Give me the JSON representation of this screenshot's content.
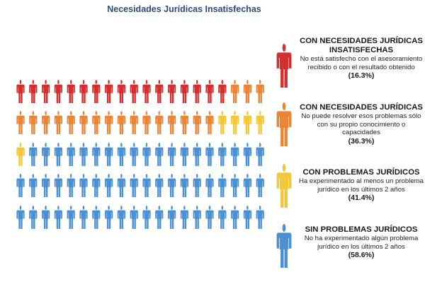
{
  "title": "Necesidades Jurídicas Insatisfechas",
  "colors": {
    "red": "#d32f2f",
    "orange": "#e88538",
    "yellow": "#f2c83a",
    "blue": "#4a90d2"
  },
  "chart_data": {
    "type": "pictogram",
    "title": "Necesidades Jurídicas Insatisfechas",
    "rows": [
      {
        "counts": [
          {
            "category": "red",
            "n": 17
          },
          {
            "category": "orange",
            "n": 3
          }
        ]
      },
      {
        "counts": [
          {
            "category": "orange",
            "n": 16
          },
          {
            "category": "yellow",
            "n": 4
          }
        ]
      },
      {
        "counts": [
          {
            "category": "yellow",
            "n": 1
          },
          {
            "category": "blue",
            "n": 19
          }
        ]
      },
      {
        "counts": [
          {
            "category": "blue",
            "n": 20
          }
        ]
      },
      {
        "counts": [
          {
            "category": "blue",
            "n": 20
          }
        ]
      }
    ],
    "legend": [
      {
        "key": "red",
        "heading": "CON NECESIDADES JURÍDICAS INSATISFECHAS",
        "description": "No está satisfecho con el asesoramiento recibido o con el resultado obtenido",
        "percent": "(16.3%)",
        "value": 16.3
      },
      {
        "key": "orange",
        "heading": "CON NECESIDADES JURÍDICAS",
        "description": "No puede resolver esos problemas sólo con su propio conocimiento o capacidades",
        "percent": "(36.3%)",
        "value": 36.3
      },
      {
        "key": "yellow",
        "heading": "CON PROBLEMAS JURÍDICOS",
        "description": "Ha experimentado al menos un problema jurídico en los últimos 2 años",
        "percent": "(41.4%)",
        "value": 41.4
      },
      {
        "key": "blue",
        "heading": "SIN PROBLEMAS JURÍDICOS",
        "description": "No ha experimentado algún problema jurídico en los últimos 2 años",
        "percent": "(58.6%)",
        "value": 58.6
      }
    ]
  }
}
